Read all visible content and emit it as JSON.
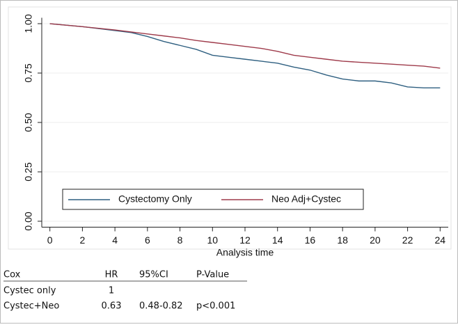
{
  "chart_data": {
    "type": "line",
    "x_label": "Analysis time",
    "x": [
      0,
      2,
      4,
      5,
      6,
      7,
      8,
      9,
      10,
      11,
      12,
      13,
      14,
      15,
      16,
      17,
      18,
      19,
      20,
      21,
      22,
      23,
      24
    ],
    "series": [
      {
        "name": "Cystectomy Only",
        "color": "#2e5f80",
        "values": [
          1.0,
          0.985,
          0.965,
          0.955,
          0.935,
          0.91,
          0.89,
          0.87,
          0.84,
          0.83,
          0.82,
          0.81,
          0.8,
          0.78,
          0.765,
          0.74,
          0.72,
          0.71,
          0.71,
          0.7,
          0.68,
          0.675,
          0.675
        ]
      },
      {
        "name": "Neo Adj+Cystec",
        "color": "#9e3a4a",
        "values": [
          1.0,
          0.985,
          0.968,
          0.958,
          0.948,
          0.938,
          0.928,
          0.915,
          0.905,
          0.895,
          0.885,
          0.875,
          0.86,
          0.84,
          0.83,
          0.82,
          0.81,
          0.805,
          0.8,
          0.795,
          0.79,
          0.785,
          0.775
        ]
      }
    ],
    "xlim": [
      -0.5,
      24.5
    ],
    "ylim": [
      -0.03,
      1.03
    ],
    "xticks": [
      0,
      2,
      4,
      6,
      8,
      10,
      12,
      14,
      16,
      18,
      20,
      22,
      24
    ],
    "yticks": [
      {
        "value": 0,
        "label": "0.00"
      },
      {
        "value": 0.25,
        "label": "0.25"
      },
      {
        "value": 0.5,
        "label": "0.50"
      },
      {
        "value": 0.75,
        "label": "0.75"
      },
      {
        "value": 1,
        "label": "1.00"
      }
    ],
    "grid": true
  },
  "table": {
    "headers": [
      "Cox",
      "HR",
      "95%CI",
      "P-Value"
    ],
    "rows": [
      [
        "Cystec only",
        "1"
      ],
      [
        "Cystec+Neo",
        "0.63",
        "0.48-0.82",
        "p<0.001"
      ]
    ]
  }
}
